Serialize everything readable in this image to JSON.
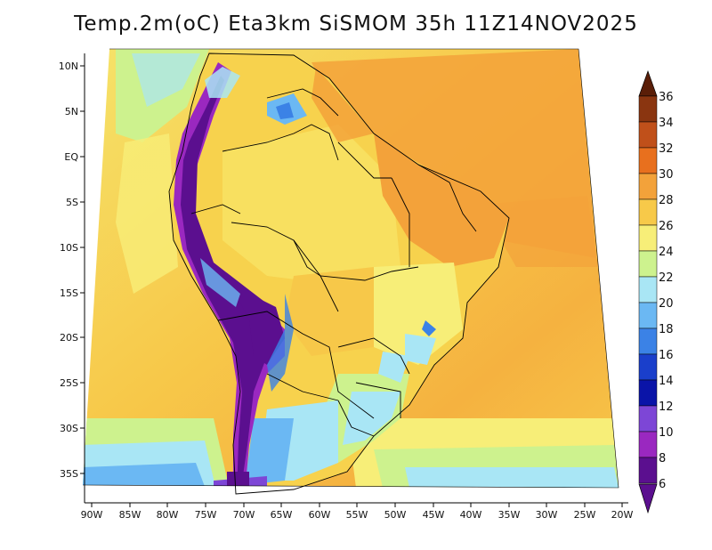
{
  "title": "Temp.2m(oC) Eta3km SiSMOM 35h 11Z14NOV2025",
  "axes": {
    "lat_labels": [
      "10N",
      "5N",
      "EQ",
      "5S",
      "10S",
      "15S",
      "20S",
      "25S",
      "30S",
      "35S"
    ],
    "lon_labels": [
      "90W",
      "85W",
      "80W",
      "75W",
      "70W",
      "65W",
      "60W",
      "55W",
      "50W",
      "45W",
      "40W",
      "35W",
      "30W",
      "25W",
      "20W"
    ]
  },
  "colorbar": {
    "labels": [
      "36",
      "34",
      "32",
      "30",
      "28",
      "26",
      "24",
      "22",
      "20",
      "18",
      "16",
      "14",
      "12",
      "10",
      "8",
      "6"
    ],
    "colors": [
      "#5a1e08",
      "#8a3510",
      "#c0501a",
      "#e8701e",
      "#f3a23a",
      "#f7c949",
      "#f7ee78",
      "#cdf28e",
      "#a9e6f5",
      "#6bb8f3",
      "#3b82e6",
      "#1a3fcb",
      "#0a14a8",
      "#7d46d6",
      "#9a28c0",
      "#5b0f8f"
    ]
  }
}
